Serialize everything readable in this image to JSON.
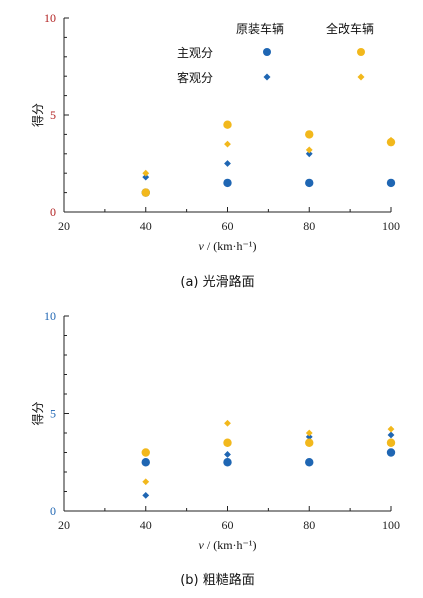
{
  "colors": {
    "original": "#1f66b3",
    "modified": "#f2b81c"
  },
  "legend": {
    "col_original": "原装车辆",
    "col_modified": "全改车辆",
    "row_subjective": "主观分",
    "row_objective": "客观分"
  },
  "chart_data": [
    {
      "type": "scatter",
      "caption": "(a)  光滑路面",
      "xlabel_var": "v",
      "xlabel_unit": " / (km·h⁻¹)",
      "ylabel": "得分",
      "xlim": [
        20,
        100
      ],
      "ylim": [
        0,
        10
      ],
      "xticks": [
        "20",
        "40",
        "60",
        "80",
        "100"
      ],
      "yticks": [
        "0",
        "5",
        "10"
      ],
      "ytick_color": "#b22222",
      "series": [
        {
          "vehicle": "original",
          "kind": "subjective",
          "marker": "circle",
          "x": [
            40,
            60,
            80,
            100
          ],
          "y": [
            1.0,
            1.5,
            1.5,
            1.5
          ]
        },
        {
          "vehicle": "original",
          "kind": "objective",
          "marker": "diamond",
          "x": [
            40,
            60,
            80
          ],
          "y": [
            1.8,
            2.5,
            3.0
          ]
        },
        {
          "vehicle": "modified",
          "kind": "subjective",
          "marker": "circle",
          "x": [
            40,
            60,
            80,
            100
          ],
          "y": [
            1.0,
            4.5,
            4.0,
            3.6
          ]
        },
        {
          "vehicle": "modified",
          "kind": "objective",
          "marker": "diamond",
          "x": [
            40,
            60,
            80,
            100
          ],
          "y": [
            2.0,
            3.5,
            3.2,
            3.7
          ]
        }
      ]
    },
    {
      "type": "scatter",
      "caption": "(b)  粗糙路面",
      "xlabel_var": "v",
      "xlabel_unit": " / (km·h⁻¹)",
      "ylabel": "得分",
      "xlim": [
        20,
        100
      ],
      "ylim": [
        0,
        10
      ],
      "xticks": [
        "20",
        "40",
        "60",
        "80",
        "100"
      ],
      "yticks": [
        "0",
        "5",
        "10"
      ],
      "ytick_color": "#1f66b3",
      "series": [
        {
          "vehicle": "original",
          "kind": "subjective",
          "marker": "circle",
          "x": [
            40,
            60,
            80,
            100
          ],
          "y": [
            2.5,
            2.5,
            2.5,
            3.0
          ]
        },
        {
          "vehicle": "original",
          "kind": "objective",
          "marker": "diamond",
          "x": [
            40,
            60,
            80,
            100
          ],
          "y": [
            0.8,
            2.9,
            3.8,
            3.9
          ]
        },
        {
          "vehicle": "modified",
          "kind": "subjective",
          "marker": "circle",
          "x": [
            40,
            60,
            80,
            100
          ],
          "y": [
            3.0,
            3.5,
            3.5,
            3.5
          ]
        },
        {
          "vehicle": "modified",
          "kind": "objective",
          "marker": "diamond",
          "x": [
            40,
            60,
            80,
            100
          ],
          "y": [
            1.5,
            4.5,
            4.0,
            4.2
          ]
        }
      ]
    }
  ]
}
